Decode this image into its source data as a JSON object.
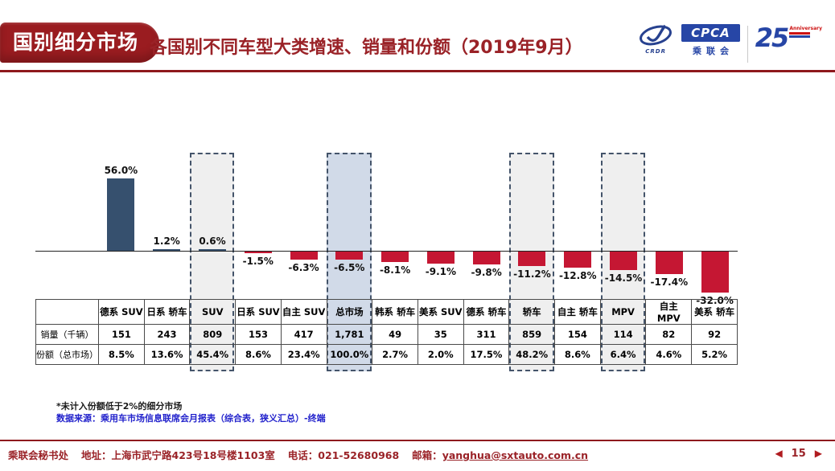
{
  "header": {
    "badge": "国别细分市场",
    "title": "各国别不同车型大类增速、销量和份额（2019年9月）",
    "accent_color": "#9a1c20",
    "logo": {
      "cpca": "CPCA",
      "cpca_sub": "乘联会",
      "crdr": "CRDR",
      "anniversary_number": "25",
      "anniversary_label": "Anniversary"
    }
  },
  "chart_data": {
    "type": "bar",
    "title": "各国别不同车型大类增速（2019年9月）",
    "categories": [
      "德系 SUV",
      "日系 轿车",
      "SUV",
      "日系 SUV",
      "自主 SUV",
      "总市场",
      "韩系 轿车",
      "美系 SUV",
      "德系 轿车",
      "轿车",
      "自主 轿车",
      "MPV",
      "自主 MPV",
      "美系 轿车"
    ],
    "values": [
      56.0,
      1.2,
      0.6,
      -1.5,
      -6.3,
      -6.5,
      -8.1,
      -9.1,
      -9.8,
      -11.2,
      -12.8,
      -14.5,
      -17.4,
      -32.0
    ],
    "labels": [
      "56.0%",
      "1.2%",
      "0.6%",
      "-1.5%",
      "-6.3%",
      "-6.5%",
      "-8.1%",
      "-9.1%",
      "-9.8%",
      "-11.2%",
      "-12.8%",
      "-14.5%",
      "-17.4%",
      "-32.0%"
    ],
    "unit": "%",
    "ylim": [
      -40,
      62
    ],
    "grid": false,
    "legend": "none",
    "positive_color": "#36506e",
    "negative_color": "#c51733",
    "highlights": [
      {
        "index": 2,
        "label": "SUV",
        "fill": "rgba(226,226,226,0.55)"
      },
      {
        "index": 5,
        "label": "总市场",
        "fill": "rgba(193,205,224,0.75)"
      },
      {
        "index": 9,
        "label": "轿车",
        "fill": "rgba(226,226,226,0.55)"
      },
      {
        "index": 11,
        "label": "MPV",
        "fill": "rgba(226,226,226,0.55)"
      }
    ]
  },
  "table": {
    "columns": [
      "德系 SUV",
      "日系 轿车",
      "SUV",
      "日系 SUV",
      "自主 SUV",
      "总市场",
      "韩系 轿车",
      "美系 SUV",
      "德系 轿车",
      "轿车",
      "自主 轿车",
      "MPV",
      "自主 MPV",
      "美系 轿车"
    ],
    "row_headers": [
      "销量（千辆）",
      "份额（总市场）"
    ],
    "rows": [
      [
        "151",
        "243",
        "809",
        "153",
        "417",
        "1,781",
        "49",
        "35",
        "311",
        "859",
        "154",
        "114",
        "82",
        "92"
      ],
      [
        "8.5%",
        "13.6%",
        "45.4%",
        "8.6%",
        "23.4%",
        "100.0%",
        "2.7%",
        "2.0%",
        "17.5%",
        "48.2%",
        "8.6%",
        "6.4%",
        "4.6%",
        "5.2%"
      ]
    ]
  },
  "notes": {
    "footnote": "*未计入份额低于2%的细分市场",
    "source": "数据来源：乘用车市场信息联席会月报表（综合表，狭义汇总）-终端"
  },
  "footer": {
    "org": "乘联会秘书处",
    "address": "地址：上海市武宁路423号18号楼1103室",
    "phone": "电话：021-52680968",
    "email_label": "邮箱：",
    "email": "yanghua@sxtauto.com.cn",
    "page": "15"
  }
}
